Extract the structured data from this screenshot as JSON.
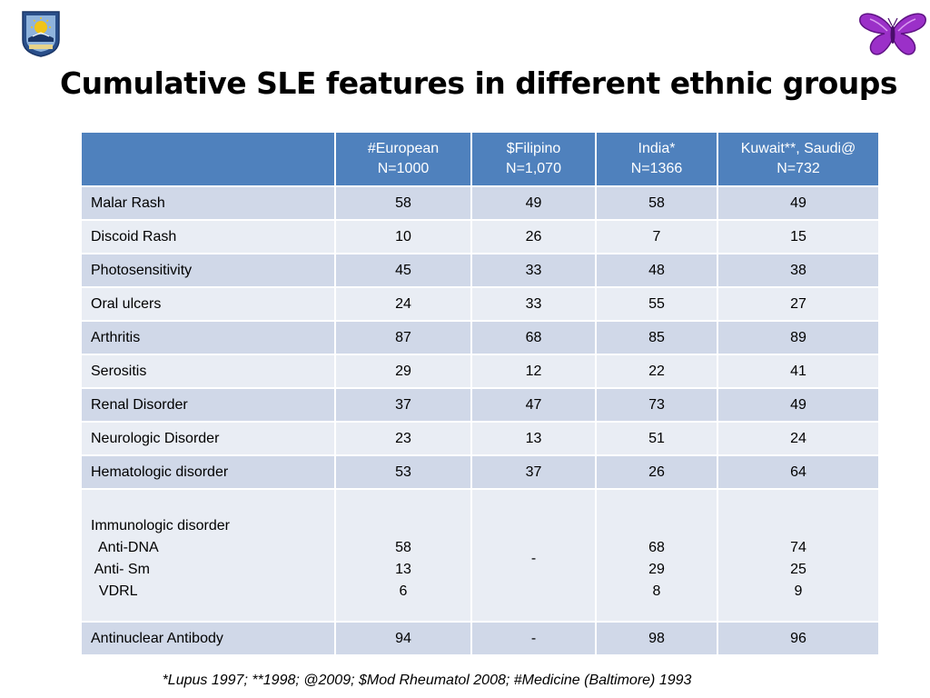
{
  "title": "Cumulative SLE features in different ethnic groups",
  "logos": {
    "left_icon": "university-seal-icon",
    "right_icon": "butterfly-icon",
    "right_color": "#9b30c8"
  },
  "table": {
    "headers": [
      {
        "line1": "",
        "line2": ""
      },
      {
        "line1": "#European",
        "line2": "N=1000"
      },
      {
        "line1": "$Filipino",
        "line2": "N=1,070"
      },
      {
        "line1": "India*",
        "line2": "N=1366"
      },
      {
        "line1": "Kuwait**, Saudi@",
        "line2": "N=732"
      }
    ],
    "rows": [
      {
        "label": "Malar Rash",
        "values": [
          "58",
          "49",
          "58",
          "49"
        ]
      },
      {
        "label": "Discoid Rash",
        "values": [
          "10",
          "26",
          "7",
          "15"
        ]
      },
      {
        "label": "Photosensitivity",
        "values": [
          "45",
          "33",
          "48",
          "38"
        ]
      },
      {
        "label": "Oral ulcers",
        "values": [
          "24",
          "33",
          "55",
          "27"
        ]
      },
      {
        "label": "Arthritis",
        "values": [
          "87",
          "68",
          "85",
          "89"
        ]
      },
      {
        "label": "Serositis",
        "values": [
          "29",
          "12",
          "22",
          "41"
        ]
      },
      {
        "label": "Renal Disorder",
        "values": [
          "37",
          "47",
          "73",
          "49"
        ]
      },
      {
        "label": "Neurologic Disorder",
        "values": [
          "23",
          "13",
          "51",
          "24"
        ]
      },
      {
        "label": "Hematologic disorder",
        "values": [
          "53",
          "37",
          "26",
          "64"
        ]
      }
    ],
    "immunologic": {
      "label": "Immunologic disorder",
      "sublabels": [
        "  Anti-DNA",
        " Anti- Sm",
        "  VDRL"
      ],
      "values": [
        [
          "58",
          "13",
          "6"
        ],
        [
          "-"
        ],
        [
          "68",
          "29",
          "8"
        ],
        [
          "74",
          "25",
          "9"
        ]
      ]
    },
    "ana": {
      "label": "Antinuclear Antibody",
      "values": [
        "94",
        "-",
        "98",
        "96"
      ]
    }
  },
  "footnote": "*Lupus 1997; **1998; @2009;  $Mod Rheumatol 2008;  #Medicine (Baltimore) 1993"
}
